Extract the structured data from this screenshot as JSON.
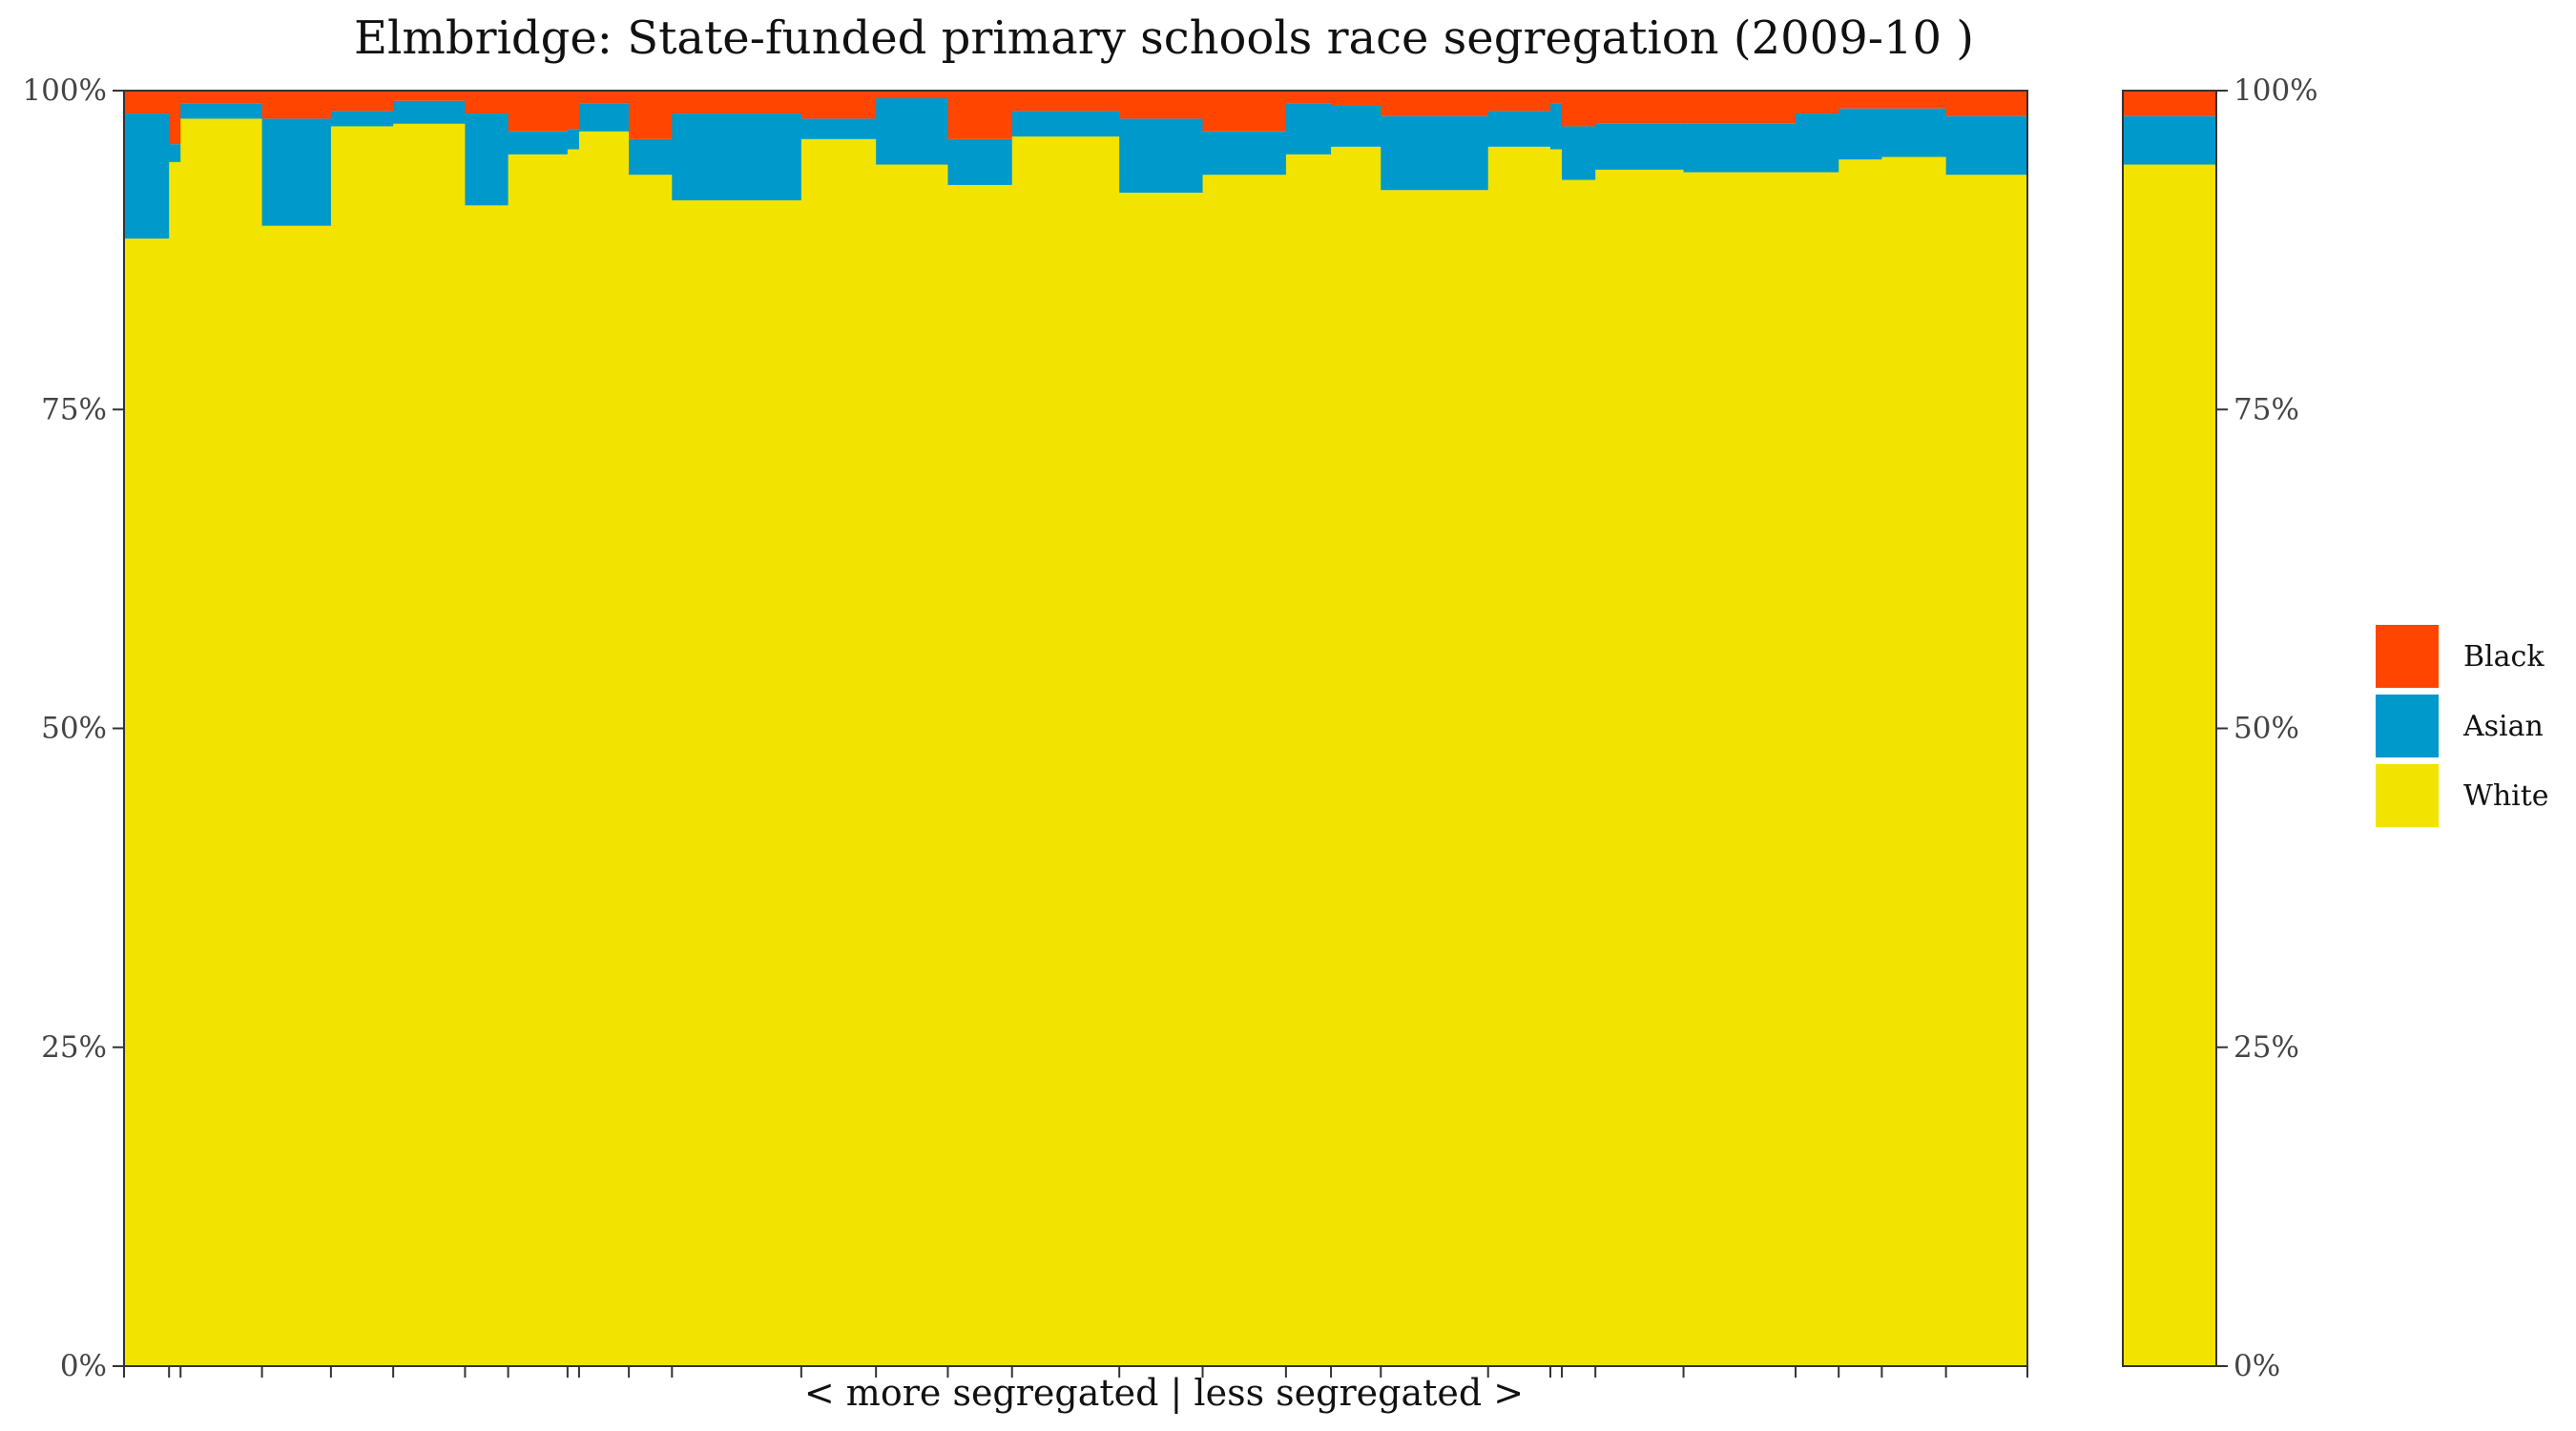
{
  "chart_data": {
    "type": "bar",
    "stacked": true,
    "variable_width": true,
    "title": "Elmbridge: State-funded primary schools race segregation (2009-10 )",
    "xlabel": "< more segregated | less segregated >",
    "ylabel": "",
    "ylim": [
      0,
      1
    ],
    "y_ticks": [
      "0%",
      "25%",
      "50%",
      "75%",
      "100%"
    ],
    "grid": false,
    "legend_position": "right",
    "series_colors": {
      "Black": "#FF4500",
      "Asian": "#0099CC",
      "White": "#F2E400"
    },
    "legend": [
      {
        "name": "Black",
        "color": "#FF4500"
      },
      {
        "name": "Asian",
        "color": "#0099CC"
      },
      {
        "name": "White",
        "color": "#F2E400"
      }
    ],
    "schools": [
      {
        "width": 0.47,
        "white": 0.884,
        "asian": 0.098,
        "black": 0.018
      },
      {
        "width": 0.12,
        "white": 0.944,
        "asian": 0.014,
        "black": 0.042
      },
      {
        "width": 0.85,
        "white": 0.978,
        "asian": 0.012,
        "black": 0.01
      },
      {
        "width": 0.72,
        "white": 0.894,
        "asian": 0.084,
        "black": 0.022
      },
      {
        "width": 0.65,
        "white": 0.972,
        "asian": 0.012,
        "black": 0.016
      },
      {
        "width": 0.75,
        "white": 0.974,
        "asian": 0.018,
        "black": 0.008
      },
      {
        "width": 0.45,
        "white": 0.91,
        "asian": 0.072,
        "black": 0.018
      },
      {
        "width": 0.62,
        "white": 0.95,
        "asian": 0.018,
        "black": 0.032
      },
      {
        "width": 0.12,
        "white": 0.954,
        "asian": 0.016,
        "black": 0.03
      },
      {
        "width": 0.52,
        "white": 0.968,
        "asian": 0.022,
        "black": 0.01
      },
      {
        "width": 0.45,
        "white": 0.934,
        "asian": 0.028,
        "black": 0.038
      },
      {
        "width": 1.35,
        "white": 0.914,
        "asian": 0.068,
        "black": 0.018
      },
      {
        "width": 0.78,
        "white": 0.962,
        "asian": 0.016,
        "black": 0.022
      },
      {
        "width": 0.75,
        "white": 0.942,
        "asian": 0.052,
        "black": 0.006
      },
      {
        "width": 0.67,
        "white": 0.926,
        "asian": 0.036,
        "black": 0.038
      },
      {
        "width": 1.12,
        "white": 0.964,
        "asian": 0.02,
        "black": 0.016
      },
      {
        "width": 0.87,
        "white": 0.92,
        "asian": 0.058,
        "black": 0.022
      },
      {
        "width": 0.87,
        "white": 0.934,
        "asian": 0.034,
        "black": 0.032
      },
      {
        "width": 0.47,
        "white": 0.95,
        "asian": 0.04,
        "black": 0.01
      },
      {
        "width": 0.52,
        "white": 0.956,
        "asian": 0.032,
        "black": 0.012
      },
      {
        "width": 1.12,
        "white": 0.922,
        "asian": 0.058,
        "black": 0.02
      },
      {
        "width": 0.65,
        "white": 0.956,
        "asian": 0.028,
        "black": 0.016
      },
      {
        "width": 0.12,
        "white": 0.954,
        "asian": 0.036,
        "black": 0.01
      },
      {
        "width": 0.35,
        "white": 0.93,
        "asian": 0.042,
        "black": 0.028
      },
      {
        "width": 0.92,
        "white": 0.938,
        "asian": 0.036,
        "black": 0.026
      },
      {
        "width": 1.17,
        "white": 0.936,
        "asian": 0.038,
        "black": 0.026
      },
      {
        "width": 0.45,
        "white": 0.936,
        "asian": 0.046,
        "black": 0.018
      },
      {
        "width": 0.45,
        "white": 0.946,
        "asian": 0.04,
        "black": 0.014
      },
      {
        "width": 0.67,
        "white": 0.948,
        "asian": 0.038,
        "black": 0.014
      },
      {
        "width": 0.85,
        "white": 0.934,
        "asian": 0.046,
        "black": 0.02
      }
    ],
    "overall": {
      "white": 0.942,
      "asian": 0.038,
      "black": 0.02
    }
  }
}
